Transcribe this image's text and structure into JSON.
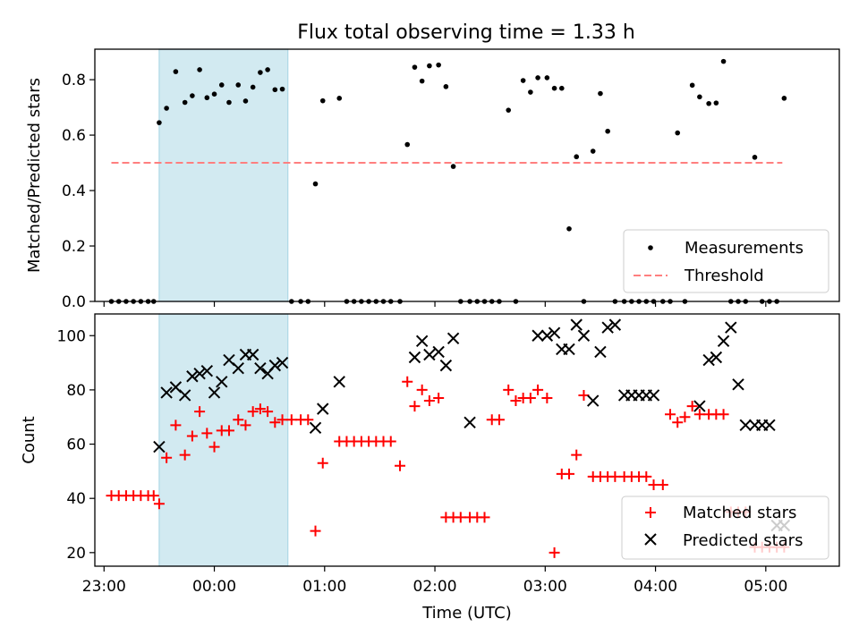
{
  "chart_data": [
    {
      "type": "scatter",
      "title": "Flux total observing time = 1.33 h",
      "xlabel": "",
      "ylabel": "Matched/Predicted stars",
      "xlim": [
        -65,
        340
      ],
      "ylim": [
        0,
        0.91
      ],
      "yticks": [
        0.0,
        0.2,
        0.4,
        0.6,
        0.8
      ],
      "ytick_labels": [
        "0.0",
        "0.2",
        "0.4",
        "0.6",
        "0.8"
      ],
      "shaded_region": {
        "x": [
          -30,
          40
        ],
        "color": "#add8e6"
      },
      "threshold": {
        "name": "Threshold",
        "y": 0.5,
        "x": [
          -56,
          309
        ],
        "color": "#ff7f7f"
      },
      "legend": {
        "position": "lower right",
        "entries": [
          "Measurements",
          "Threshold"
        ]
      },
      "series": [
        {
          "name": "Measurements",
          "color": "#000000",
          "marker": "dot",
          "x": [
            -56,
            -52,
            -48,
            -44,
            -40,
            -36,
            -33,
            -30,
            -26,
            -21,
            -16,
            -12,
            -8,
            -4,
            0,
            4,
            8,
            13,
            17,
            21,
            25,
            29,
            33,
            37,
            42,
            47,
            51,
            55,
            59,
            68,
            72,
            76,
            80,
            84,
            88,
            92,
            96,
            101,
            105,
            109,
            113,
            117,
            122,
            126,
            130,
            134,
            139,
            143,
            147,
            151,
            155,
            160,
            164,
            168,
            172,
            176,
            181,
            185,
            189,
            193,
            197,
            201,
            206,
            210,
            214,
            218,
            223,
            227,
            231,
            235,
            239,
            244,
            248,
            252,
            256,
            260,
            264,
            269,
            273,
            277,
            281,
            285,
            289,
            294,
            298,
            302,
            306,
            310
          ],
          "y": [
            0,
            0,
            0,
            0,
            0,
            0,
            0,
            0.645,
            0.697,
            0.829,
            0.718,
            0.742,
            0.836,
            0.735,
            0.748,
            0.781,
            0.718,
            0.781,
            0.723,
            0.773,
            0.826,
            0.836,
            0.764,
            0.766,
            0,
            0,
            0,
            0.424,
            0.724,
            0.733,
            0,
            0,
            0,
            0,
            0,
            0,
            0,
            0,
            0.566,
            0.845,
            0.795,
            0.85,
            0.853,
            0.775,
            0.487,
            0,
            0,
            0,
            0,
            0,
            0,
            0.69,
            0,
            0.797,
            0.755,
            0.807,
            0.807,
            0.769,
            0.769,
            0.262,
            0.522,
            0,
            0.542,
            0.75,
            0.614,
            0,
            0,
            0,
            0,
            0,
            0,
            0,
            0,
            0.608,
            0,
            0.78,
            0.738,
            0.714,
            0.716,
            0.866,
            0,
            0,
            0,
            0.52,
            0,
            0,
            0,
            0.733
          ]
        }
      ]
    },
    {
      "type": "scatter",
      "title": "",
      "xlabel": "Time (UTC)",
      "ylabel": "Count",
      "xlim": [
        -65,
        340
      ],
      "ylim": [
        15,
        108
      ],
      "yticks": [
        20,
        40,
        60,
        80,
        100
      ],
      "ytick_labels": [
        "20",
        "40",
        "60",
        "80",
        "100"
      ],
      "xticks": [
        -60,
        0,
        60,
        120,
        180,
        240,
        300
      ],
      "xtick_labels": [
        "23:00",
        "00:00",
        "01:00",
        "02:00",
        "03:00",
        "04:00",
        "05:00"
      ],
      "shaded_region": {
        "x": [
          -30,
          40
        ],
        "color": "#add8e6"
      },
      "legend": {
        "position": "lower right",
        "entries": [
          "Matched stars",
          "Predicted stars"
        ]
      },
      "series": [
        {
          "name": "Matched stars",
          "color": "#ff0000",
          "marker": "plus",
          "x": [
            -56,
            -52,
            -48,
            -44,
            -40,
            -36,
            -33,
            -30,
            -26,
            -21,
            -16,
            -12,
            -8,
            -4,
            0,
            4,
            8,
            13,
            17,
            21,
            25,
            29,
            33,
            37,
            42,
            47,
            51,
            55,
            59,
            68,
            72,
            76,
            80,
            84,
            88,
            92,
            96,
            101,
            105,
            109,
            113,
            117,
            122,
            126,
            130,
            134,
            139,
            143,
            147,
            151,
            155,
            160,
            164,
            168,
            172,
            176,
            181,
            185,
            189,
            193,
            197,
            201,
            206,
            210,
            214,
            218,
            223,
            227,
            231,
            235,
            239,
            244,
            248,
            252,
            256,
            260,
            264,
            269,
            273,
            277,
            281,
            285,
            289,
            294,
            298,
            302,
            306,
            310
          ],
          "y": [
            41,
            41,
            41,
            41,
            41,
            41,
            41,
            38,
            55,
            67,
            56,
            63,
            72,
            64,
            59,
            65,
            65,
            69,
            67,
            72,
            73,
            72,
            68,
            69,
            69,
            69,
            69,
            28,
            53,
            61,
            61,
            61,
            61,
            61,
            61,
            61,
            61,
            52,
            83,
            74,
            80,
            76,
            77,
            33,
            33,
            33,
            33,
            33,
            33,
            69,
            69,
            80,
            76,
            77,
            77,
            80,
            77,
            20,
            49,
            49,
            56,
            78,
            48,
            48,
            48,
            48,
            48,
            48,
            48,
            48,
            45,
            45,
            71,
            68,
            70,
            74,
            71,
            71,
            71,
            71,
            35,
            35,
            35,
            22,
            22,
            22,
            22,
            22
          ]
        },
        {
          "name": "Predicted stars",
          "color": "#000000",
          "marker": "x",
          "x": [
            -30,
            -26,
            -21,
            -16,
            -12,
            -8,
            -4,
            0,
            4,
            8,
            13,
            17,
            21,
            25,
            29,
            33,
            37,
            55,
            59,
            68,
            109,
            113,
            117,
            122,
            126,
            130,
            139,
            176,
            181,
            185,
            189,
            193,
            197,
            201,
            206,
            210,
            214,
            218,
            223,
            227,
            231,
            235,
            239,
            264,
            269,
            273,
            277,
            281,
            285,
            289,
            294,
            298,
            302,
            306,
            310
          ],
          "y": [
            59,
            79,
            81,
            78,
            85,
            86,
            87,
            79,
            83,
            91,
            88,
            93,
            93,
            88,
            86,
            89,
            90,
            66,
            73,
            83,
            92,
            98,
            93,
            94,
            89,
            99,
            68,
            100,
            100,
            101,
            95,
            95,
            104,
            100,
            76,
            94,
            103,
            104,
            78,
            78,
            78,
            78,
            78,
            74,
            91,
            92,
            98,
            103,
            82,
            67,
            67,
            67,
            67,
            30,
            30
          ]
        }
      ]
    }
  ]
}
